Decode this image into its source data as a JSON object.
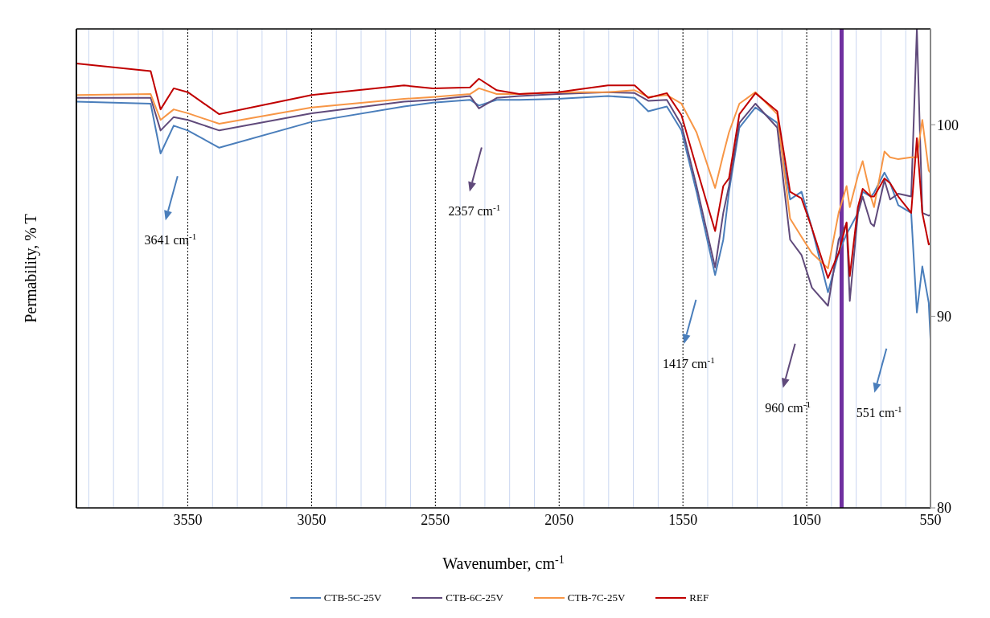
{
  "chart_data": {
    "type": "line",
    "xlabel": "Wavenumber, cm$^{-1}$",
    "ylabel": "Permability, % T",
    "x": [
      4000,
      3700,
      3660,
      3607,
      3550,
      3423,
      3050,
      2677,
      2560,
      2410,
      2374,
      2302,
      2211,
      2055,
      1853,
      1745,
      1690,
      1615,
      1556,
      1495,
      1420,
      1387,
      1364,
      1322,
      1257,
      1169,
      1117,
      1071,
      1029,
      964,
      921,
      889,
      876,
      843,
      824,
      791,
      778,
      736,
      713,
      680,
      628,
      605,
      583,
      557,
      550
    ],
    "series": [
      {
        "name": "CTB-5C-25V",
        "color": "#4a7ebb",
        "values": [
          101.2,
          101.1,
          98.5,
          99.95,
          99.7,
          98.8,
          100.15,
          100.95,
          101.15,
          101.3,
          101.0,
          101.3,
          101.3,
          101.35,
          101.5,
          101.4,
          100.7,
          100.95,
          99.7,
          96.5,
          92.15,
          94.0,
          96.5,
          99.85,
          100.9,
          100.1,
          96.1,
          96.5,
          94.6,
          91.25,
          93.3,
          94.3,
          94.6,
          95.4,
          96.5,
          96.25,
          96.45,
          97.5,
          96.95,
          95.8,
          95.4,
          90.2,
          92.6,
          90.7,
          88.8
        ]
      },
      {
        "name": "CTB-6C-25V",
        "color": "#604a7b",
        "values": [
          101.4,
          101.4,
          99.7,
          100.4,
          100.25,
          99.7,
          100.6,
          101.2,
          101.3,
          101.5,
          100.85,
          101.4,
          101.5,
          101.6,
          101.7,
          101.65,
          101.25,
          101.3,
          100.0,
          96.8,
          92.55,
          95.4,
          96.8,
          100.1,
          101.1,
          99.85,
          94.0,
          93.2,
          91.5,
          90.55,
          94.0,
          94.85,
          90.8,
          95.4,
          96.25,
          94.85,
          94.7,
          97.1,
          96.1,
          96.4,
          96.25,
          105,
          95.4,
          95.25,
          95.3
        ]
      },
      {
        "name": "CTB-7C-25V",
        "color": "#f79646",
        "values": [
          101.55,
          101.6,
          100.25,
          100.8,
          100.6,
          100.05,
          100.9,
          101.35,
          101.45,
          101.6,
          101.9,
          101.6,
          101.6,
          101.7,
          101.7,
          101.8,
          101.45,
          101.55,
          101.1,
          99.6,
          96.7,
          98.45,
          99.6,
          101.1,
          101.7,
          100.55,
          95.1,
          94.15,
          93.3,
          92.5,
          95.4,
          96.8,
          95.7,
          97.35,
          98.1,
          96.25,
          95.7,
          98.6,
          98.3,
          98.2,
          98.3,
          98.3,
          100.25,
          97.6,
          97.5
        ]
      },
      {
        "name": "REF",
        "color": "#c00000",
        "values": [
          103.2,
          102.8,
          100.8,
          101.9,
          101.7,
          100.55,
          101.55,
          102.05,
          101.9,
          101.95,
          102.4,
          101.8,
          101.6,
          101.7,
          102.05,
          102.05,
          101.4,
          101.65,
          100.5,
          97.75,
          94.45,
          96.8,
          97.2,
          100.55,
          101.65,
          100.7,
          96.5,
          96.15,
          94.6,
          92.0,
          93.3,
          94.9,
          92.1,
          95.7,
          96.65,
          96.25,
          96.25,
          97.2,
          96.95,
          96.25,
          95.4,
          99.3,
          95.4,
          93.75,
          93.8
        ]
      }
    ],
    "xlim": [
      4000,
      550
    ],
    "xticks": [
      {
        "value": 3950,
        "label": null
      },
      {
        "value": 3850,
        "label": null
      },
      {
        "value": 3750,
        "label": null
      },
      {
        "value": 3650,
        "label": null
      },
      3550,
      {
        "value": 3450,
        "label": null
      },
      {
        "value": 3350,
        "label": null
      },
      {
        "value": 3250,
        "label": null
      },
      {
        "value": 3150,
        "label": null
      },
      3050,
      {
        "value": 2950,
        "label": null
      },
      {
        "value": 2850,
        "label": null
      },
      {
        "value": 2750,
        "label": null
      },
      {
        "value": 2650,
        "label": null
      },
      2550,
      {
        "value": 2450,
        "label": null
      },
      {
        "value": 2350,
        "label": null
      },
      {
        "value": 2250,
        "label": null
      },
      {
        "value": 2150,
        "label": null
      },
      2050,
      {
        "value": 1950,
        "label": null
      },
      {
        "value": 1850,
        "label": null
      },
      {
        "value": 1750,
        "label": null
      },
      {
        "value": 1650,
        "label": null
      },
      1550,
      {
        "value": 1450,
        "label": null
      },
      {
        "value": 1350,
        "label": null
      },
      {
        "value": 1250,
        "label": null
      },
      {
        "value": 1150,
        "label": null
      },
      1050,
      {
        "value": 950,
        "label": null
      },
      {
        "value": 850,
        "label": null
      },
      {
        "value": 750,
        "label": null
      },
      {
        "value": 650,
        "label": null
      },
      550
    ],
    "ylim": [
      80,
      105
    ],
    "yticks": [
      80,
      90,
      100
    ],
    "grid": "x",
    "legend": "bottom",
    "marker": "none",
    "line_style": "solid",
    "ref_lines": [
      {
        "axis": "x",
        "value": 909,
        "color": "#7030a0"
      }
    ],
    "annotations": [
      "3641 cm$^{-1}$",
      "2357 cm$^{-1}$",
      "1417 cm$^{-1}$",
      "960 cm$^{-1}$",
      "551 cm$^{-1}$"
    ]
  }
}
